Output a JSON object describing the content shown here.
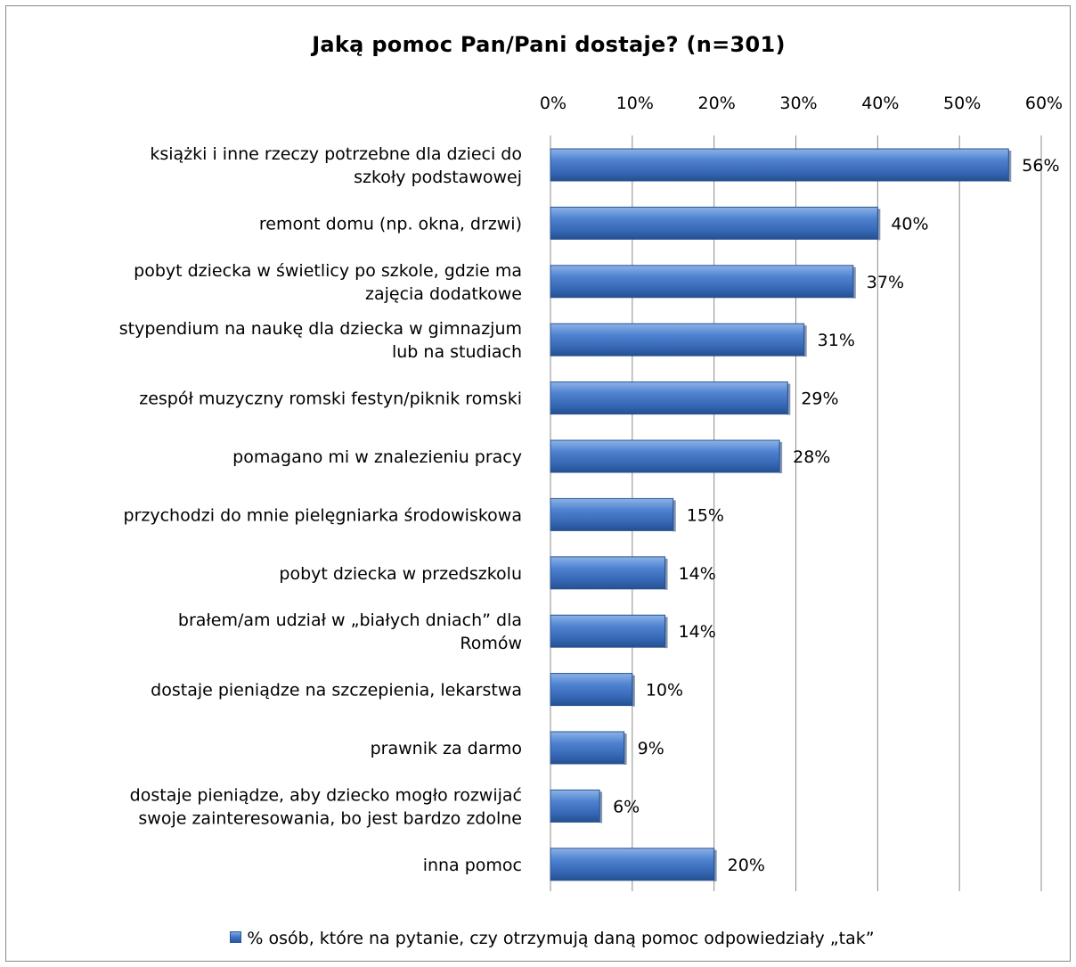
{
  "chart_data": {
    "type": "bar",
    "orientation": "horizontal",
    "title": "Jaką pomoc Pan/Pani dostaje?  (n=301)",
    "categories": [
      "książki i inne rzeczy potrzebne dla dzieci do szkoły podstawowej",
      "remont domu (np. okna, drzwi)",
      "pobyt dziecka w świetlicy po szkole, gdzie ma zajęcia dodatkowe",
      "stypendium na naukę dla dziecka w gimnazjum lub na studiach",
      "zespół muzyczny romski festyn/piknik romski",
      "pomagano mi w znalezieniu pracy",
      "przychodzi do mnie pielęgniarka środowiskowa",
      "pobyt dziecka w przedszkolu",
      "brałem/am udział w „białych dniach” dla Romów",
      "dostaje pieniądze na szczepienia, lekarstwa",
      "prawnik za darmo",
      "dostaje pieniądze, aby dziecko mogło rozwijać swoje zainteresowania, bo jest bardzo zdolne",
      "inna pomoc"
    ],
    "category_lines": [
      [
        "książki i inne rzeczy potrzebne dla dzieci do",
        "szkoły podstawowej"
      ],
      [
        "remont domu (np. okna, drzwi)"
      ],
      [
        "pobyt dziecka w świetlicy po szkole, gdzie ma",
        "zajęcia dodatkowe"
      ],
      [
        "stypendium na naukę dla dziecka w gimnazjum",
        "lub na studiach"
      ],
      [
        "zespół muzyczny romski festyn/piknik romski"
      ],
      [
        "pomagano mi w znalezieniu pracy"
      ],
      [
        "przychodzi do mnie pielęgniarka środowiskowa"
      ],
      [
        "pobyt dziecka w przedszkolu"
      ],
      [
        "brałem/am udział w „białych dniach” dla",
        "Romów"
      ],
      [
        "dostaje pieniądze na szczepienia, lekarstwa"
      ],
      [
        "prawnik za darmo"
      ],
      [
        "dostaje pieniądze, aby dziecko mogło rozwijać",
        "swoje zainteresowania, bo jest bardzo zdolne"
      ],
      [
        "inna pomoc"
      ]
    ],
    "series": [
      {
        "name": "% osób, które na pytanie, czy otrzymują daną pomoc odpowiedziały „tak”",
        "values": [
          56,
          40,
          37,
          31,
          29,
          28,
          15,
          14,
          14,
          10,
          9,
          6,
          20
        ]
      }
    ],
    "data_labels": [
      "56%",
      "40%",
      "37%",
      "31%",
      "29%",
      "28%",
      "15%",
      "14%",
      "14%",
      "10%",
      "9%",
      "6%",
      "20%"
    ],
    "xlim": [
      0,
      60
    ],
    "x_ticks": [
      "0%",
      "10%",
      "20%",
      "30%",
      "40%",
      "50%",
      "60%"
    ],
    "x_axis_position": "top",
    "grid": "vertical",
    "legend_position": "bottom",
    "bar_color": "#3f74c4"
  }
}
